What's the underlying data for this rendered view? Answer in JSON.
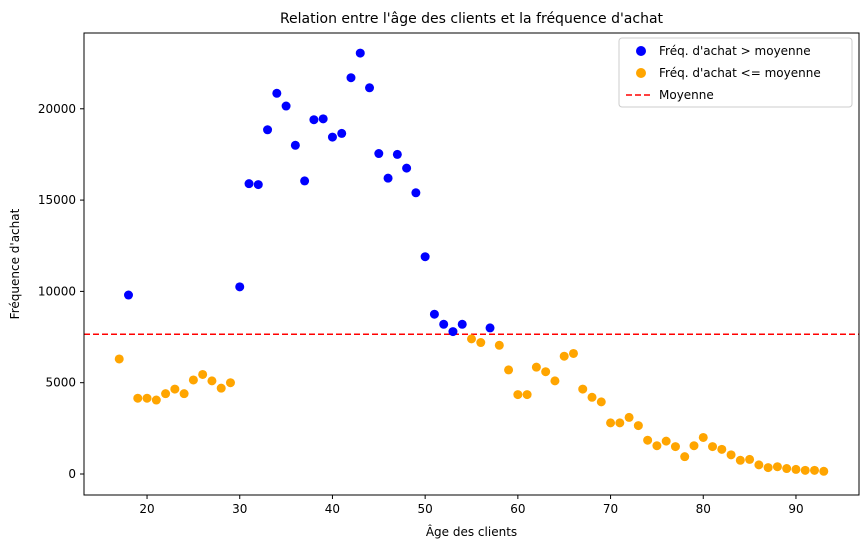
{
  "chart_data": {
    "type": "scatter",
    "title": "Relation entre l'âge des clients et la fréquence d'achat",
    "xlabel": "Âge des clients",
    "ylabel": "Fréquence d'achat",
    "xlim": [
      13.2,
      96.8
    ],
    "ylim": [
      -1150,
      24150
    ],
    "xticks": [
      20,
      30,
      40,
      50,
      60,
      70,
      80,
      90
    ],
    "yticks": [
      0,
      5000,
      10000,
      15000,
      20000
    ],
    "xtick_labels": [
      "20",
      "30",
      "40",
      "50",
      "60",
      "70",
      "80",
      "90"
    ],
    "ytick_labels": [
      "0",
      "5000",
      "10000",
      "15000",
      "20000"
    ],
    "grid": false,
    "legend_position": "top-right",
    "series": [
      {
        "name": "Fréq. d'achat > moyenne",
        "color": "#0000ff",
        "points": [
          [
            18,
            9800
          ],
          [
            30,
            10250
          ],
          [
            31,
            15900
          ],
          [
            32,
            15850
          ],
          [
            33,
            18850
          ],
          [
            34,
            20850
          ],
          [
            35,
            20150
          ],
          [
            36,
            18000
          ],
          [
            37,
            16050
          ],
          [
            38,
            19400
          ],
          [
            39,
            19450
          ],
          [
            40,
            18450
          ],
          [
            41,
            18650
          ],
          [
            42,
            21700
          ],
          [
            43,
            23050
          ],
          [
            44,
            21150
          ],
          [
            45,
            17550
          ],
          [
            46,
            16200
          ],
          [
            47,
            17500
          ],
          [
            48,
            16750
          ],
          [
            49,
            15400
          ],
          [
            50,
            11900
          ],
          [
            51,
            8750
          ],
          [
            52,
            8200
          ],
          [
            53,
            7800
          ],
          [
            54,
            8200
          ],
          [
            57,
            8000
          ]
        ]
      },
      {
        "name": "Fréq. d'achat <= moyenne",
        "color": "#ffa500",
        "points": [
          [
            17,
            6300
          ],
          [
            19,
            4150
          ],
          [
            20,
            4150
          ],
          [
            21,
            4050
          ],
          [
            22,
            4400
          ],
          [
            23,
            4650
          ],
          [
            24,
            4400
          ],
          [
            25,
            5150
          ],
          [
            26,
            5450
          ],
          [
            27,
            5100
          ],
          [
            28,
            4700
          ],
          [
            29,
            5000
          ],
          [
            55,
            7400
          ],
          [
            56,
            7200
          ],
          [
            58,
            7050
          ],
          [
            59,
            5700
          ],
          [
            60,
            4350
          ],
          [
            61,
            4350
          ],
          [
            62,
            5850
          ],
          [
            63,
            5600
          ],
          [
            64,
            5100
          ],
          [
            65,
            6450
          ],
          [
            66,
            6600
          ],
          [
            67,
            4650
          ],
          [
            68,
            4200
          ],
          [
            69,
            3950
          ],
          [
            70,
            2800
          ],
          [
            71,
            2800
          ],
          [
            72,
            3100
          ],
          [
            73,
            2650
          ],
          [
            74,
            1850
          ],
          [
            75,
            1550
          ],
          [
            76,
            1800
          ],
          [
            77,
            1500
          ],
          [
            78,
            950
          ],
          [
            79,
            1550
          ],
          [
            80,
            2000
          ],
          [
            81,
            1500
          ],
          [
            82,
            1350
          ],
          [
            83,
            1050
          ],
          [
            84,
            750
          ],
          [
            85,
            800
          ],
          [
            86,
            500
          ],
          [
            87,
            350
          ],
          [
            88,
            400
          ],
          [
            89,
            300
          ],
          [
            90,
            250
          ],
          [
            91,
            200
          ],
          [
            92,
            200
          ],
          [
            93,
            150
          ]
        ]
      }
    ],
    "reference_line": {
      "name": "Moyenne",
      "value": 7650,
      "color": "#ff0000",
      "style": "dashed"
    }
  }
}
